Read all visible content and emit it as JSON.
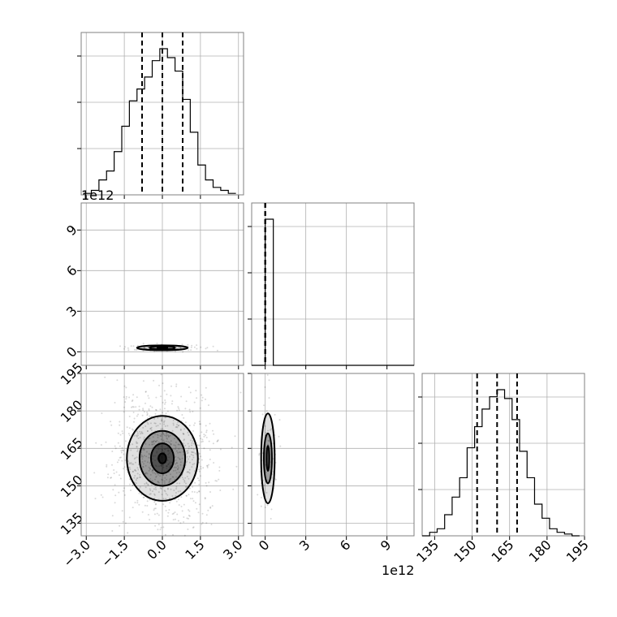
{
  "chart_data": {
    "type": "corner",
    "parameters": 3,
    "offset_labels": {
      "panel_1_0_y": "1e12",
      "panel_2_1_x": "1e12"
    },
    "axes": {
      "p0": {
        "range": [
          -3.2,
          3.2
        ],
        "ticks": [
          -3.0,
          -1.5,
          0.0,
          1.5,
          3.0
        ],
        "tick_labels": [
          "−3.0",
          "−1.5",
          "0.0",
          "1.5",
          "3.0"
        ]
      },
      "p1": {
        "range": [
          -1,
          11
        ],
        "ticks": [
          0,
          3,
          6,
          9
        ],
        "tick_labels": [
          "0",
          "3",
          "6",
          "9"
        ]
      },
      "p2": {
        "range": [
          130,
          195
        ],
        "ticks": [
          135,
          150,
          165,
          180,
          195
        ],
        "tick_labels": [
          "135",
          "150",
          "165",
          "180",
          "195"
        ]
      }
    },
    "histograms": {
      "p0": {
        "bins": [
          -3.1,
          -2.8,
          -2.5,
          -2.2,
          -1.9,
          -1.6,
          -1.3,
          -1.0,
          -0.7,
          -0.4,
          -0.1,
          0.2,
          0.5,
          0.8,
          1.1,
          1.4,
          1.7,
          2.0,
          2.3,
          2.6,
          2.9
        ],
        "counts": [
          0.01,
          0.03,
          0.1,
          0.16,
          0.29,
          0.46,
          0.63,
          0.71,
          0.79,
          0.9,
          0.98,
          0.92,
          0.83,
          0.64,
          0.42,
          0.2,
          0.1,
          0.05,
          0.03,
          0.01
        ],
        "quantiles": [
          -0.8,
          0.0,
          0.8
        ]
      },
      "p1": {
        "bins": [
          -1,
          0,
          0.6,
          11
        ],
        "counts": [
          0.0,
          1.0,
          0.0
        ],
        "quantiles": [
          0.0,
          0.0,
          0.0
        ]
      },
      "p2": {
        "bins": [
          130,
          133,
          136,
          139,
          142,
          145,
          148,
          151,
          154,
          157,
          160,
          163,
          166,
          169,
          172,
          175,
          178,
          181,
          184,
          187,
          190,
          193
        ],
        "counts": [
          0.0,
          0.02,
          0.04,
          0.12,
          0.22,
          0.33,
          0.5,
          0.62,
          0.72,
          0.79,
          0.83,
          0.78,
          0.66,
          0.48,
          0.33,
          0.18,
          0.1,
          0.04,
          0.02,
          0.01,
          0.0
        ],
        "quantiles": [
          152,
          160,
          168
        ]
      }
    },
    "contours": {
      "p0_p2": {
        "center": [
          0.0,
          161
        ],
        "levels": [
          {
            "sx": 0.15,
            "sy": 2
          },
          {
            "sx": 0.45,
            "sy": 6
          },
          {
            "sx": 0.9,
            "sy": 11
          },
          {
            "sx": 1.4,
            "sy": 17
          }
        ]
      },
      "p0_p1": {
        "center": [
          0.0,
          0.3
        ],
        "levels": [
          {
            "sx": 0.2,
            "sy": 0.05
          },
          {
            "sx": 0.5,
            "sy": 0.12
          },
          {
            "sx": 1.0,
            "sy": 0.18
          }
        ]
      },
      "p1_p2": {
        "center": [
          0.2,
          161
        ],
        "levels": [
          {
            "sx": 0.1,
            "sy": 5
          },
          {
            "sx": 0.3,
            "sy": 10
          },
          {
            "sx": 0.5,
            "sy": 18
          }
        ]
      }
    }
  }
}
